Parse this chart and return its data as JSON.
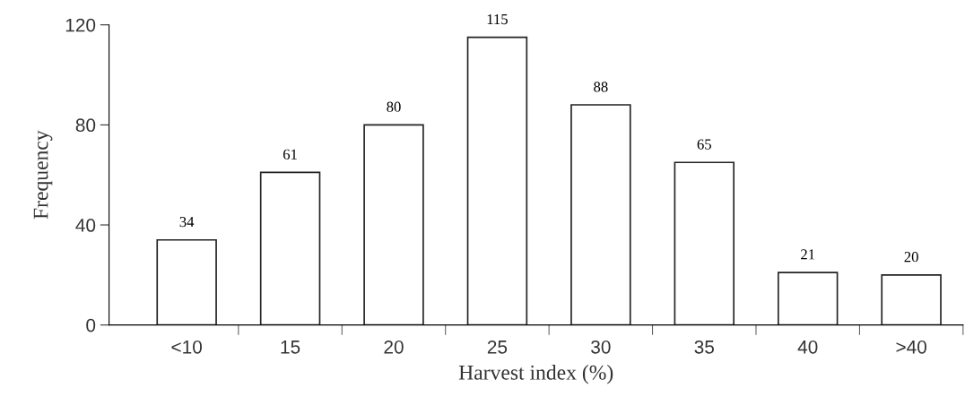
{
  "chart_data": {
    "type": "bar",
    "xlabel": "Harvest index (%)",
    "ylabel": "Frequency",
    "categories": [
      "<10",
      "15",
      "20",
      "25",
      "30",
      "35",
      "40",
      ">40"
    ],
    "values": [
      34,
      61,
      80,
      115,
      88,
      65,
      21,
      20
    ],
    "color": "#ffffff",
    "ylim": [
      0,
      120
    ],
    "yticks": [
      0,
      40,
      80,
      120
    ],
    "data_labels": true,
    "grid": false,
    "legend": false
  }
}
